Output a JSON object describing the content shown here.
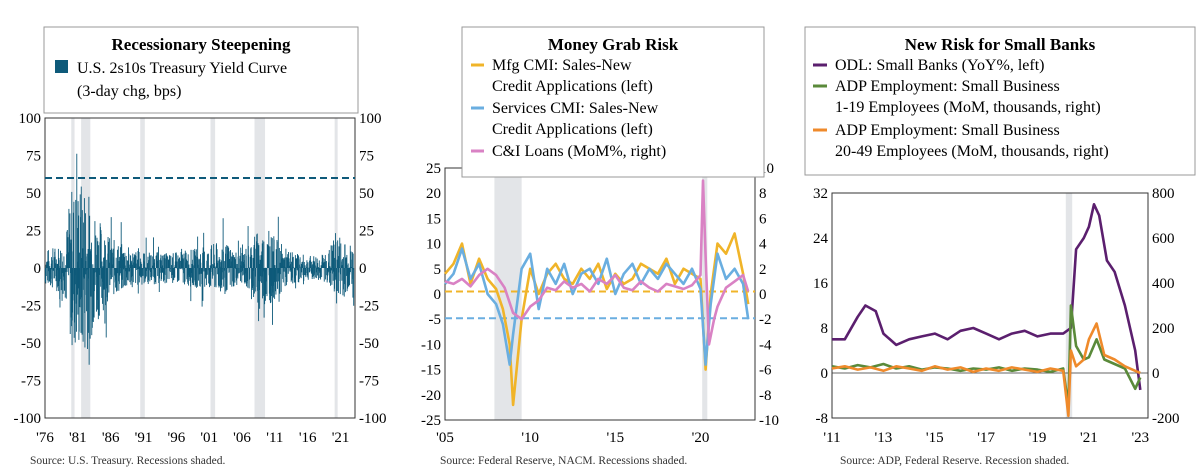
{
  "chart_data": [
    {
      "type": "bar",
      "title": "Recessionary Steepening",
      "legend": [
        {
          "label": "U.S. 2s10s Treasury Yield Curve",
          "label2": "(3-day chg, bps)",
          "color": "#0e5a7a"
        }
      ],
      "x_ticks": [
        "'76",
        "'81",
        "'86",
        "'91",
        "'96",
        "'01",
        "'06",
        "'11",
        "'16",
        "'21"
      ],
      "x_tick_years": [
        1976,
        1981,
        1986,
        1991,
        1996,
        2001,
        2006,
        2011,
        2016,
        2021
      ],
      "xlim": [
        1976,
        2023.2
      ],
      "ylim": [
        -100,
        100
      ],
      "y_ticks": [
        "100",
        "75",
        "50",
        "25",
        "0",
        "-25",
        "-50",
        "-75",
        "-100"
      ],
      "y_tick_values": [
        100,
        75,
        50,
        25,
        0,
        -25,
        -50,
        -75,
        -100
      ],
      "recessions": [
        [
          1980.0,
          1980.5
        ],
        [
          1981.5,
          1982.9
        ],
        [
          1990.5,
          1991.2
        ],
        [
          2001.2,
          2001.9
        ],
        [
          2007.9,
          2009.5
        ],
        [
          2020.1,
          2020.4
        ]
      ],
      "reference_line": 60,
      "amplitude_envelope": [
        {
          "year": 1976,
          "amp": 12
        },
        {
          "year": 1979,
          "amp": 18
        },
        {
          "year": 1980,
          "amp": 55
        },
        {
          "year": 1982,
          "amp": 60
        },
        {
          "year": 1984,
          "amp": 35
        },
        {
          "year": 1986,
          "amp": 20
        },
        {
          "year": 1990,
          "amp": 12
        },
        {
          "year": 1995,
          "amp": 10
        },
        {
          "year": 2000,
          "amp": 14
        },
        {
          "year": 2003,
          "amp": 18
        },
        {
          "year": 2006,
          "amp": 10
        },
        {
          "year": 2008,
          "amp": 25
        },
        {
          "year": 2010,
          "amp": 25
        },
        {
          "year": 2013,
          "amp": 12
        },
        {
          "year": 2016,
          "amp": 8
        },
        {
          "year": 2019,
          "amp": 10
        },
        {
          "year": 2020.3,
          "amp": 25
        },
        {
          "year": 2022,
          "amp": 18
        },
        {
          "year": 2023,
          "amp": 15
        }
      ],
      "source": "Source: U.S. Treasury. Recessions shaded."
    },
    {
      "type": "line",
      "title": "Money Grab Risk",
      "series": [
        {
          "name": "Mfg CMI: Sales-New",
          "name2": "Credit Applications (left)",
          "color": "#f0b429",
          "axis": "left",
          "x": [
            2005,
            2005.5,
            2006,
            2006.5,
            2007,
            2007.5,
            2008,
            2008.4,
            2008.8,
            2009,
            2009.5,
            2010,
            2010.5,
            2011,
            2011.5,
            2012,
            2012.5,
            2013,
            2013.5,
            2014,
            2014.5,
            2015,
            2015.5,
            2016,
            2016.5,
            2017,
            2017.5,
            2018,
            2018.5,
            2019,
            2019.5,
            2020,
            2020.3,
            2020.6,
            2021,
            2021.5,
            2022,
            2022.5,
            2022.8
          ],
          "values": [
            4,
            6,
            10,
            2,
            7,
            3,
            1,
            -3,
            -10,
            -22,
            -5,
            5,
            0,
            4,
            6,
            3,
            2,
            5,
            3,
            6,
            1,
            4,
            2,
            3,
            6,
            5,
            4,
            7,
            2,
            5,
            4,
            3,
            -15,
            0,
            10,
            8,
            12,
            4,
            -2
          ]
        },
        {
          "name": "Services CMI: Sales-New",
          "name2": "Credit Applications (left)",
          "color": "#6aaee0",
          "axis": "left",
          "x": [
            2005,
            2005.5,
            2006,
            2006.5,
            2007,
            2007.5,
            2008,
            2008.4,
            2008.8,
            2009,
            2009.5,
            2010,
            2010.5,
            2011,
            2011.5,
            2012,
            2012.5,
            2013,
            2013.5,
            2014,
            2014.5,
            2015,
            2015.5,
            2016,
            2016.5,
            2017,
            2017.5,
            2018,
            2018.5,
            2019,
            2019.5,
            2020,
            2020.3,
            2020.6,
            2021,
            2021.5,
            2022,
            2022.5,
            2022.8
          ],
          "values": [
            2,
            4,
            9,
            3,
            6,
            0,
            -2,
            -6,
            -14,
            -8,
            5,
            8,
            -3,
            5,
            2,
            6,
            0,
            4,
            5,
            2,
            7,
            0,
            4,
            6,
            2,
            5,
            3,
            6,
            4,
            2,
            5,
            1,
            -14,
            -2,
            8,
            3,
            5,
            2,
            -5
          ]
        },
        {
          "name": "C&I Loans (MoM%, right)",
          "color": "#d982c4",
          "axis": "right",
          "x": [
            2005,
            2005.5,
            2006,
            2006.5,
            2007,
            2007.5,
            2008,
            2008.5,
            2009,
            2009.5,
            2010,
            2010.5,
            2011,
            2011.5,
            2012,
            2012.5,
            2013,
            2013.5,
            2014,
            2014.5,
            2015,
            2015.5,
            2016,
            2016.5,
            2017,
            2017.5,
            2018,
            2018.5,
            2019,
            2019.5,
            2020,
            2020.15,
            2020.3,
            2020.5,
            2020.8,
            2021,
            2021.5,
            2022,
            2022.5,
            2022.8
          ],
          "values": [
            1,
            0.8,
            1.2,
            0.6,
            1.5,
            2,
            1.5,
            0.5,
            -1.5,
            -2,
            -1,
            -0.5,
            0.5,
            0.3,
            1,
            0.5,
            0.8,
            0.2,
            1.2,
            0.8,
            1.5,
            0.5,
            0.3,
            1,
            0.5,
            0.2,
            0.8,
            0.6,
            0.4,
            0.7,
            1.5,
            9,
            3,
            -4,
            -2,
            -1,
            0.5,
            1,
            1.5,
            0.2
          ]
        }
      ],
      "x_ticks": [
        "'05",
        "'10",
        "'15",
        "'20"
      ],
      "x_tick_years": [
        2005,
        2010,
        2015,
        2020
      ],
      "xlim": [
        2005,
        2023.2
      ],
      "ylim_left": [
        -25,
        25
      ],
      "ylim_right": [
        -10,
        10
      ],
      "y_ticks_left": [
        "25",
        "20",
        "15",
        "10",
        "5",
        "0",
        "-5",
        "-10",
        "-15",
        "-20",
        "-25"
      ],
      "y_tick_values_left": [
        25,
        20,
        15,
        10,
        5,
        0,
        -5,
        -10,
        -15,
        -20,
        -25
      ],
      "y_ticks_right": [
        "10",
        "8",
        "6",
        "4",
        "2",
        "0",
        "-2",
        "-4",
        "-6",
        "-8",
        "-10"
      ],
      "y_tick_values_right": [
        10,
        8,
        6,
        4,
        2,
        0,
        -2,
        -4,
        -6,
        -8,
        -10
      ],
      "recessions": [
        [
          2007.9,
          2009.5
        ],
        [
          2020.1,
          2020.4
        ]
      ],
      "reference_lines": [
        {
          "value": 0.5,
          "axis": "left",
          "color": "#f0b429"
        },
        {
          "value": -4.8,
          "axis": "left",
          "color": "#6aaee0"
        }
      ],
      "source": "Source: Federal Reserve, NACM. Recessions shaded."
    },
    {
      "type": "line",
      "title": "New Risk for Small Banks",
      "series": [
        {
          "name": "ODL: Small Banks (YoY%, left)",
          "color": "#5b1f6e",
          "axis": "left",
          "x": [
            2011,
            2011.5,
            2012,
            2012.3,
            2012.7,
            2013,
            2013.5,
            2014,
            2014.5,
            2015,
            2015.5,
            2016,
            2016.5,
            2017,
            2017.5,
            2018,
            2018.5,
            2019,
            2019.5,
            2020,
            2020.3,
            2020.5,
            2020.8,
            2021,
            2021.2,
            2021.4,
            2021.7,
            2022,
            2022.4,
            2022.8,
            2023
          ],
          "values": [
            6,
            6,
            10,
            12,
            11,
            7,
            5,
            6,
            6.5,
            7,
            6,
            7.5,
            8,
            7,
            6,
            7,
            7.5,
            6.5,
            7,
            7,
            8,
            22,
            24,
            26,
            30,
            28,
            20,
            18,
            12,
            4,
            -3
          ]
        },
        {
          "name": "ADP Employment: Small Business",
          "name2": "1-19 Employees (MoM, thousands, right)",
          "color": "#5a8a3a",
          "axis": "right",
          "x": [
            2011,
            2011.5,
            2012,
            2012.5,
            2013,
            2013.5,
            2014,
            2014.5,
            2015,
            2015.5,
            2016,
            2016.5,
            2017,
            2017.5,
            2018,
            2018.5,
            2019,
            2019.5,
            2020,
            2020.2,
            2020.3,
            2020.5,
            2020.8,
            2021,
            2021.3,
            2021.6,
            2022,
            2022.4,
            2022.8,
            2023
          ],
          "values": [
            30,
            20,
            35,
            25,
            40,
            20,
            30,
            15,
            25,
            20,
            10,
            20,
            15,
            25,
            10,
            20,
            15,
            5,
            20,
            -150,
            300,
            120,
            60,
            70,
            150,
            60,
            40,
            20,
            -70,
            -20
          ]
        },
        {
          "name": "ADP Employment: Small Business",
          "name2": "20-49 Employees (MoM, thousands, right)",
          "color": "#ef8a2b",
          "axis": "right",
          "x": [
            2011,
            2011.5,
            2012,
            2012.5,
            2013,
            2013.5,
            2014,
            2014.5,
            2015,
            2015.5,
            2016,
            2016.5,
            2017,
            2017.5,
            2018,
            2018.5,
            2019,
            2019.5,
            2020,
            2020.2,
            2020.3,
            2020.5,
            2020.8,
            2021,
            2021.3,
            2021.6,
            2022,
            2022.4,
            2022.8,
            2023
          ],
          "values": [
            20,
            30,
            15,
            25,
            10,
            30,
            20,
            10,
            30,
            15,
            25,
            5,
            20,
            10,
            25,
            15,
            5,
            20,
            10,
            -190,
            100,
            30,
            60,
            150,
            220,
            80,
            60,
            30,
            10,
            0
          ]
        }
      ],
      "x_ticks": [
        "'11",
        "'13",
        "'15",
        "'17",
        "'19",
        "'21",
        "'23"
      ],
      "x_tick_years": [
        2011,
        2013,
        2015,
        2017,
        2019,
        2021,
        2023
      ],
      "xlim": [
        2011,
        2023.3
      ],
      "ylim_left": [
        -8,
        32
      ],
      "ylim_right": [
        -200,
        800
      ],
      "y_ticks_left": [
        "32",
        "24",
        "16",
        "8",
        "0",
        "-8"
      ],
      "y_tick_values_left": [
        32,
        24,
        16,
        8,
        0,
        -8
      ],
      "y_ticks_right": [
        "800",
        "600",
        "400",
        "200",
        "0",
        "-200"
      ],
      "y_tick_values_right": [
        800,
        600,
        400,
        200,
        0,
        -200
      ],
      "recessions": [
        [
          2020.1,
          2020.35
        ]
      ],
      "source": "Source: ADP, Federal Reserve. Recession shaded."
    }
  ]
}
